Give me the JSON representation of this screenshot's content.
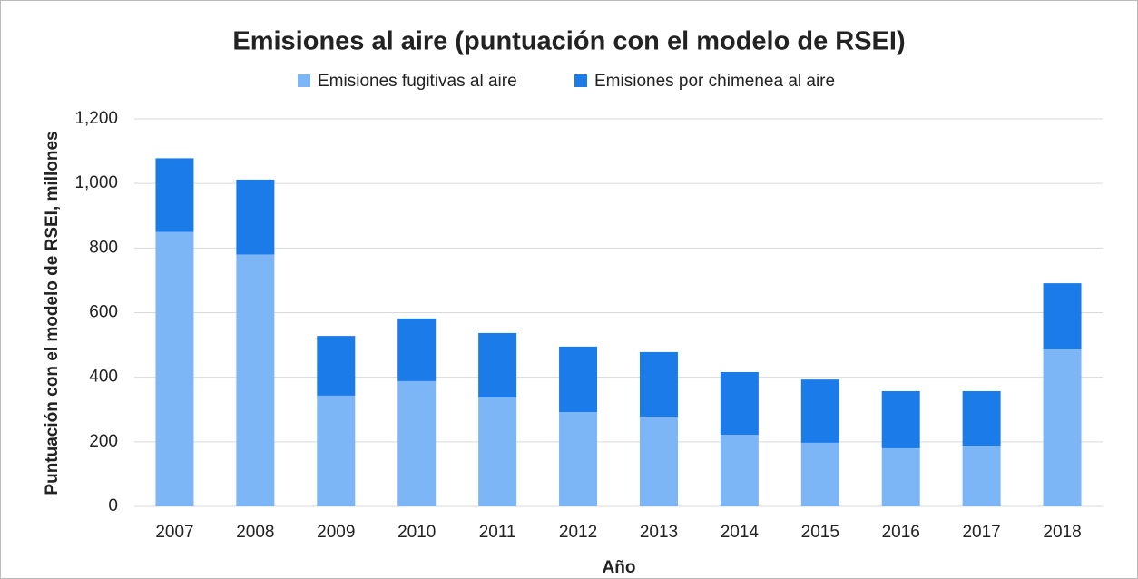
{
  "chart_data": {
    "type": "stacked_bar",
    "title": "Emisiones al aire (puntuación con el modelo de RSEI)",
    "x_label": "Año",
    "y_label": "Puntuación con el modelo de RSEI, millones",
    "categories": [
      "2007",
      "2008",
      "2009",
      "2010",
      "2011",
      "2012",
      "2013",
      "2014",
      "2015",
      "2016",
      "2017",
      "2018"
    ],
    "series": [
      {
        "name": "Emisiones fugitivas al aire",
        "color": "#7cb6f6",
        "values": [
          850,
          780,
          343,
          388,
          337,
          292,
          278,
          222,
          197,
          180,
          188,
          486
        ]
      },
      {
        "name": "Emisiones por chimenea al aire",
        "color": "#1b7be9",
        "values": [
          228,
          232,
          185,
          194,
          200,
          203,
          200,
          194,
          196,
          177,
          169,
          205
        ]
      }
    ],
    "ylim": [
      0,
      1200
    ],
    "yticks": [
      0,
      200,
      400,
      600,
      800,
      {
        "value": 1000,
        "label": "1,000"
      },
      {
        "value": 1200,
        "label": "1,200"
      }
    ],
    "grid": true,
    "legend": "top"
  }
}
